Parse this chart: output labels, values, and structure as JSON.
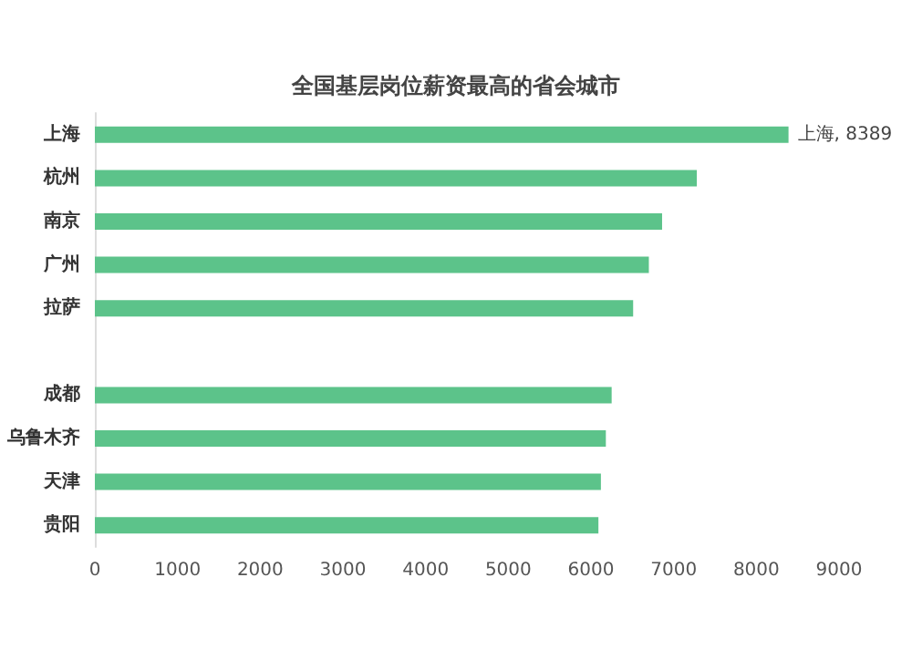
{
  "chart_data": {
    "type": "bar",
    "orientation": "horizontal",
    "title": "全国基层岗位薪资最高的省会城市",
    "categories": [
      "上海",
      "杭州",
      "南京",
      "广州",
      "拉萨",
      null,
      "成都",
      "乌鲁木齐",
      "天津",
      "贵阳"
    ],
    "values": [
      8389,
      7280,
      6860,
      6700,
      6510,
      null,
      6250,
      6180,
      6120,
      6090
    ],
    "value_labels": [
      "上海, 8389",
      null,
      null,
      null,
      null,
      null,
      null,
      null,
      null,
      null
    ],
    "color": "#5cc38a",
    "xlim": [
      0,
      9000
    ],
    "xticks": [
      0,
      1000,
      2000,
      3000,
      4000,
      5000,
      6000,
      7000,
      8000,
      9000
    ],
    "grid": false
  }
}
